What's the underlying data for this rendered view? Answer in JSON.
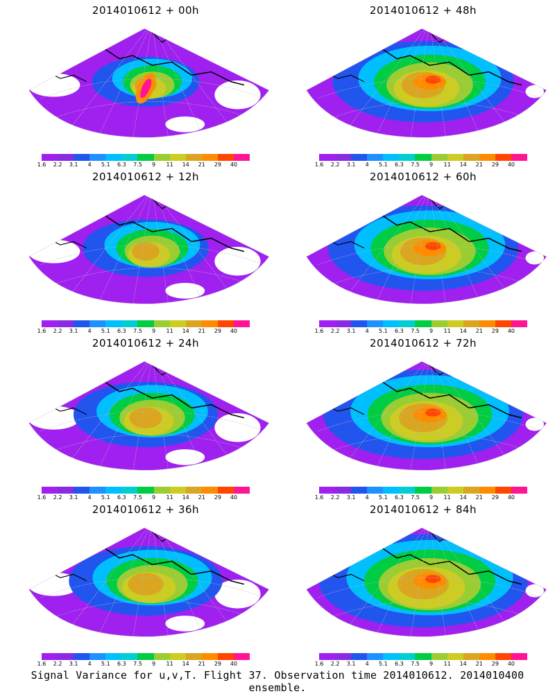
{
  "panels": [
    {
      "title": "2014010612 + 00h",
      "lead": "00h",
      "intensity": 0.3
    },
    {
      "title": "2014010612 + 48h",
      "lead": "48h",
      "intensity": 0.7
    },
    {
      "title": "2014010612 + 12h",
      "lead": "12h",
      "intensity": 0.4
    },
    {
      "title": "2014010612 + 60h",
      "lead": "60h",
      "intensity": 0.75
    },
    {
      "title": "2014010612 + 24h",
      "lead": "24h",
      "intensity": 0.5
    },
    {
      "title": "2014010612 + 72h",
      "lead": "72h",
      "intensity": 0.8
    },
    {
      "title": "2014010612 + 36h",
      "lead": "36h",
      "intensity": 0.55
    },
    {
      "title": "2014010612 + 84h",
      "lead": "84h",
      "intensity": 0.85
    }
  ],
  "colorbar": {
    "labels": [
      "1.6",
      "2.2",
      "3.1",
      "4",
      "5.1",
      "6.3",
      "7.5",
      "9",
      "11",
      "14",
      "21",
      "29",
      "40"
    ],
    "colors": [
      "#a020f0",
      "#8a2be2",
      "#2255ee",
      "#1e90ff",
      "#00bfff",
      "#00ced1",
      "#00cc44",
      "#9acd32",
      "#cccc22",
      "#daa520",
      "#ff8c00",
      "#ff4500",
      "#ff1493"
    ]
  },
  "footer": "Signal Variance for u,v,T. Flight 37. Observation time 2014010612. 2014010400 ensemble."
}
